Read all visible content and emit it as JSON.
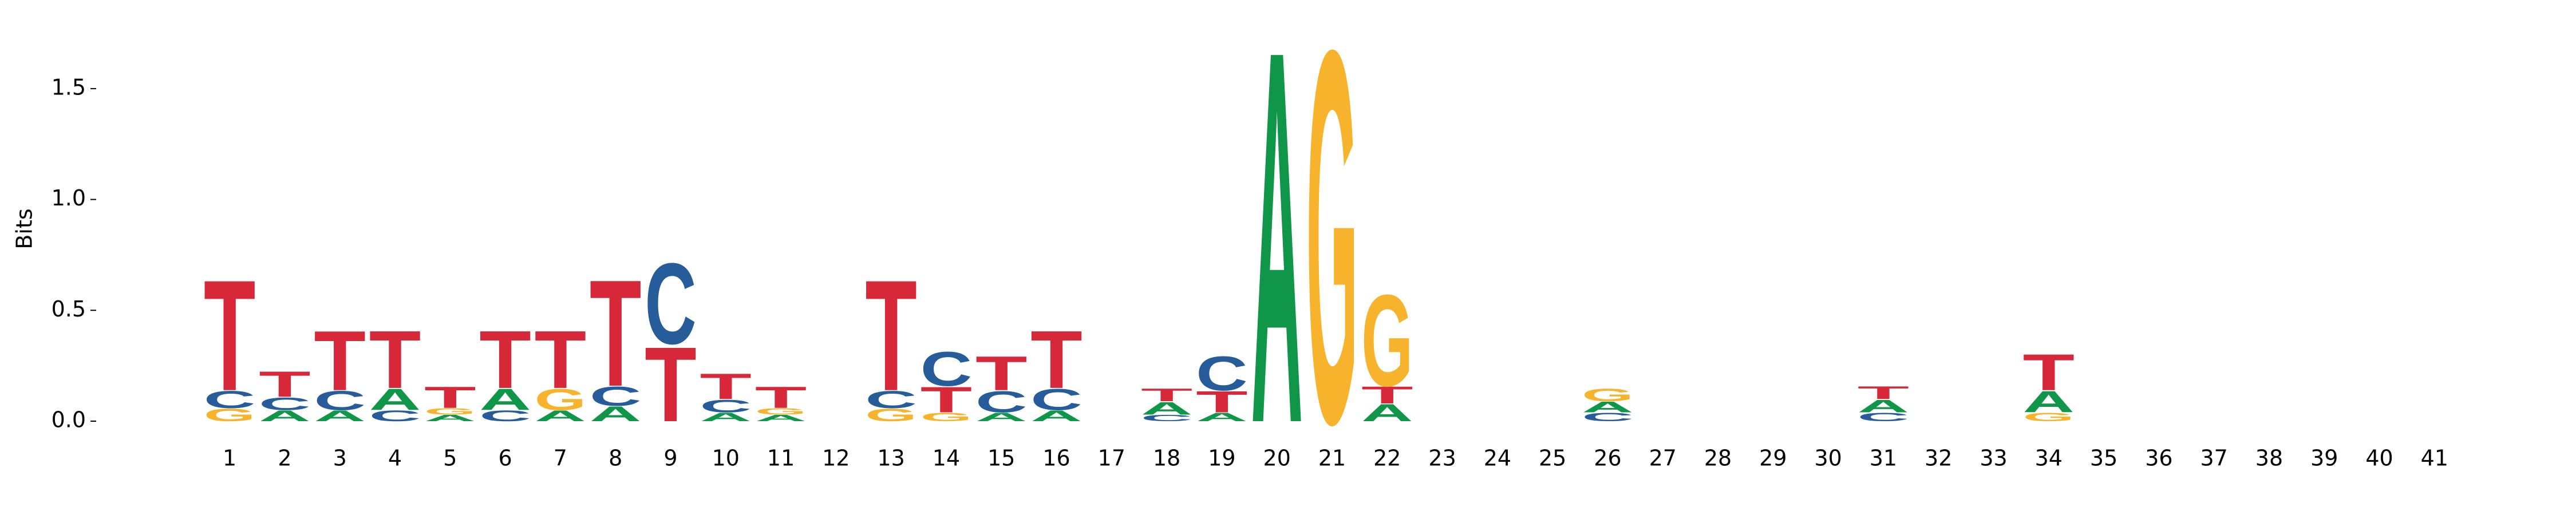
{
  "chart_data": {
    "type": "logo",
    "ylabel": "Bits",
    "x": [
      1,
      2,
      3,
      4,
      5,
      6,
      7,
      8,
      9,
      10,
      11,
      12,
      13,
      14,
      15,
      16,
      17,
      18,
      19,
      20,
      21,
      22,
      23,
      24,
      25,
      26,
      27,
      28,
      29,
      30,
      31,
      32,
      33,
      34,
      35,
      36,
      37,
      38,
      39,
      40,
      41
    ],
    "xlim": [
      0.5,
      41.5
    ],
    "ylim": [
      0,
      1.75
    ],
    "yticks": [
      {
        "value": 0,
        "label": "0.0"
      },
      {
        "value": 0.5,
        "label": "0.5"
      },
      {
        "value": 1,
        "label": "1.0"
      },
      {
        "value": 1.5,
        "label": "1.5"
      }
    ],
    "colors": {
      "A": "#109648",
      "C": "#255c99",
      "G": "#f7b32b",
      "T": "#d62839"
    },
    "positions": [
      [
        {
          "letter": "G",
          "value": 0.06
        },
        {
          "letter": "C",
          "value": 0.08
        },
        {
          "letter": "T",
          "value": 0.52
        }
      ],
      [
        {
          "letter": "A",
          "value": 0.05
        },
        {
          "letter": "C",
          "value": 0.06
        },
        {
          "letter": "T",
          "value": 0.12
        }
      ],
      [
        {
          "letter": "A",
          "value": 0.05
        },
        {
          "letter": "C",
          "value": 0.09
        },
        {
          "letter": "T",
          "value": 0.28
        }
      ],
      [
        {
          "letter": "C",
          "value": 0.05
        },
        {
          "letter": "A",
          "value": 0.1
        },
        {
          "letter": "T",
          "value": 0.27
        }
      ],
      [
        {
          "letter": "A",
          "value": 0.03
        },
        {
          "letter": "G",
          "value": 0.03
        },
        {
          "letter": "T",
          "value": 0.1
        }
      ],
      [
        {
          "letter": "C",
          "value": 0.05
        },
        {
          "letter": "A",
          "value": 0.1
        },
        {
          "letter": "T",
          "value": 0.27
        }
      ],
      [
        {
          "letter": "A",
          "value": 0.05
        },
        {
          "letter": "G",
          "value": 0.1
        },
        {
          "letter": "T",
          "value": 0.27
        }
      ],
      [
        {
          "letter": "A",
          "value": 0.07
        },
        {
          "letter": "C",
          "value": 0.09
        },
        {
          "letter": "T",
          "value": 0.5
        }
      ],
      [
        {
          "letter": "T",
          "value": 0.35
        },
        {
          "letter": "C",
          "value": 0.38
        }
      ],
      [
        {
          "letter": "A",
          "value": 0.04
        },
        {
          "letter": "C",
          "value": 0.06
        },
        {
          "letter": "T",
          "value": 0.12
        }
      ],
      [
        {
          "letter": "A",
          "value": 0.03
        },
        {
          "letter": "G",
          "value": 0.03
        },
        {
          "letter": "T",
          "value": 0.1
        }
      ],
      [],
      [
        {
          "letter": "G",
          "value": 0.06
        },
        {
          "letter": "C",
          "value": 0.08
        },
        {
          "letter": "T",
          "value": 0.52
        }
      ],
      [
        {
          "letter": "G",
          "value": 0.04
        },
        {
          "letter": "T",
          "value": 0.12
        },
        {
          "letter": "C",
          "value": 0.16
        }
      ],
      [
        {
          "letter": "A",
          "value": 0.04
        },
        {
          "letter": "C",
          "value": 0.1
        },
        {
          "letter": "T",
          "value": 0.16
        }
      ],
      [
        {
          "letter": "A",
          "value": 0.05
        },
        {
          "letter": "C",
          "value": 0.1
        },
        {
          "letter": "T",
          "value": 0.27
        }
      ],
      [],
      [
        {
          "letter": "C",
          "value": 0.03
        },
        {
          "letter": "A",
          "value": 0.06
        },
        {
          "letter": "T",
          "value": 0.06
        }
      ],
      [
        {
          "letter": "A",
          "value": 0.04
        },
        {
          "letter": "T",
          "value": 0.1
        },
        {
          "letter": "C",
          "value": 0.16
        }
      ],
      [
        {
          "letter": "A",
          "value": 1.75
        }
      ],
      [
        {
          "letter": "G",
          "value": 1.75
        }
      ],
      [
        {
          "letter": "A",
          "value": 0.08
        },
        {
          "letter": "T",
          "value": 0.08
        },
        {
          "letter": "G",
          "value": 0.43
        }
      ],
      [],
      [],
      [],
      [
        {
          "letter": "C",
          "value": 0.04
        },
        {
          "letter": "A",
          "value": 0.05
        },
        {
          "letter": "G",
          "value": 0.06
        }
      ],
      [],
      [],
      [],
      [],
      [
        {
          "letter": "C",
          "value": 0.04
        },
        {
          "letter": "A",
          "value": 0.06
        },
        {
          "letter": "T",
          "value": 0.06
        }
      ],
      [],
      [],
      [
        {
          "letter": "G",
          "value": 0.04
        },
        {
          "letter": "A",
          "value": 0.1
        },
        {
          "letter": "T",
          "value": 0.17
        }
      ],
      [],
      [],
      [],
      [],
      [],
      [],
      []
    ]
  }
}
